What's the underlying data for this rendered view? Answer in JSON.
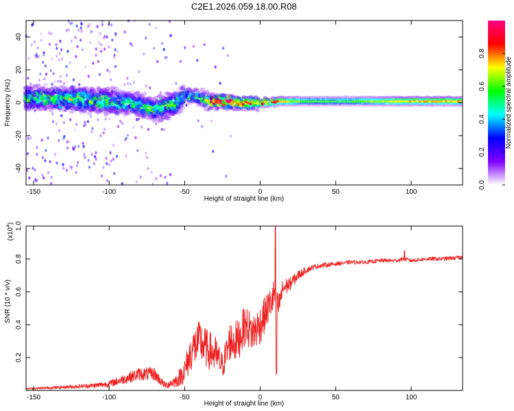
{
  "title": "C2E1.2026.059.18.00.R08",
  "chart_data": [
    {
      "type": "heatmap",
      "title": "C2E1.2026.059.18.00.R08",
      "xlabel": "Height of straight line (km)",
      "ylabel": "Frequency (Hz)",
      "xlim": [
        -155,
        134
      ],
      "ylim": [
        -50,
        50
      ],
      "x_ticks": [
        -150,
        -100,
        -50,
        0,
        50,
        100
      ],
      "x_tick_labels": [
        "-150",
        "-100",
        "-50",
        "0",
        "50",
        "100"
      ],
      "y_ticks": [
        -40,
        -20,
        0,
        20,
        40
      ],
      "y_tick_labels": [
        "-40",
        "-20",
        "0",
        "20",
        "40"
      ],
      "colorbar": {
        "label": "Normalized spectral amplitude",
        "range": [
          0,
          1
        ],
        "ticks": [
          0.0,
          0.2,
          0.4,
          0.6,
          0.8
        ],
        "tick_labels": [
          "0.0",
          "0.2",
          "0.4",
          "0.6",
          "0.8"
        ],
        "colormap": [
          "#ffffff",
          "#7f00ff",
          "#0000ff",
          "#00ffff",
          "#00ff00",
          "#ffff00",
          "#ff0000",
          "#ff0080"
        ]
      },
      "ridge": [
        {
          "x": -145,
          "f": 3.0,
          "amp": 0.45
        },
        {
          "x": -130,
          "f": 3.0,
          "amp": 0.5
        },
        {
          "x": -115,
          "f": 2.0,
          "amp": 0.5
        },
        {
          "x": -100,
          "f": 1.0,
          "amp": 0.45
        },
        {
          "x": -85,
          "f": 0.0,
          "amp": 0.4
        },
        {
          "x": -70,
          "f": -4.0,
          "amp": 0.45
        },
        {
          "x": -55,
          "f": 0.0,
          "amp": 0.45
        },
        {
          "x": -50,
          "f": 5.0,
          "amp": 0.4
        },
        {
          "x": -40,
          "f": 3.0,
          "amp": 0.45
        },
        {
          "x": -30,
          "f": 1.0,
          "amp": 0.8
        },
        {
          "x": -10,
          "f": 0.0,
          "amp": 0.8
        },
        {
          "x": 0,
          "f": 0.0,
          "amp": 0.75
        },
        {
          "x": 10,
          "f": 1.0,
          "amp": 0.8
        },
        {
          "x": 30,
          "f": 1.0,
          "amp": 0.55
        },
        {
          "x": 60,
          "f": 1.0,
          "amp": 0.55
        },
        {
          "x": 90,
          "f": 1.0,
          "amp": 0.75
        },
        {
          "x": 134,
          "f": 1.0,
          "amp": 0.75
        }
      ]
    },
    {
      "type": "line",
      "xlabel": "Height of straight line (km)",
      "ylabel": "SNR (10 * v/v)",
      "y_scale_label": "(x10",
      "y_scale_exponent": "4",
      "y_scale_close": ")",
      "xlim": [
        -155,
        134
      ],
      "ylim": [
        0,
        1.0
      ],
      "x_ticks": [
        -150,
        -100,
        -50,
        0,
        50,
        100
      ],
      "x_tick_labels": [
        "-150",
        "-100",
        "-50",
        "0",
        "50",
        "100"
      ],
      "y_ticks": [
        0.2,
        0.4,
        0.6,
        0.8,
        1.0
      ],
      "y_tick_labels": [
        "0.2",
        "0.4",
        "0.6",
        "0.8",
        "1.0"
      ],
      "series": [
        {
          "name": "SNR",
          "color": "#ee2222",
          "x": [
            -155,
            -130,
            -110,
            -100,
            -90,
            -80,
            -70,
            -63,
            -55,
            -50,
            -45,
            -40,
            -35,
            -30,
            -25,
            -20,
            -15,
            -10,
            -5,
            0,
            5,
            8,
            10,
            12,
            15,
            20,
            25,
            30,
            35,
            40,
            50,
            60,
            70,
            80,
            90,
            95,
            100,
            110,
            120,
            134
          ],
          "y": [
            0.01,
            0.02,
            0.03,
            0.04,
            0.07,
            0.1,
            0.1,
            0.03,
            0.06,
            0.12,
            0.25,
            0.3,
            0.25,
            0.22,
            0.15,
            0.3,
            0.3,
            0.4,
            0.35,
            0.4,
            0.5,
            0.55,
            0.6,
            0.5,
            0.62,
            0.65,
            0.7,
            0.73,
            0.75,
            0.76,
            0.77,
            0.78,
            0.78,
            0.79,
            0.79,
            0.8,
            0.79,
            0.8,
            0.8,
            0.81
          ],
          "noise": [
            0.005,
            0.01,
            0.015,
            0.02,
            0.03,
            0.04,
            0.04,
            0.02,
            0.04,
            0.08,
            0.12,
            0.13,
            0.12,
            0.12,
            0.08,
            0.12,
            0.13,
            0.12,
            0.12,
            0.12,
            0.1,
            0.1,
            0.1,
            0.08,
            0.06,
            0.04,
            0.03,
            0.02,
            0.015,
            0.015,
            0.012,
            0.012,
            0.012,
            0.012,
            0.012,
            0.012,
            0.012,
            0.012,
            0.012,
            0.012
          ],
          "spikes": [
            {
              "x": 10,
              "y": 1.0
            },
            {
              "x": 10.8,
              "y": 0.1
            },
            {
              "x": 95.5,
              "y": 0.85
            }
          ]
        }
      ]
    }
  ]
}
